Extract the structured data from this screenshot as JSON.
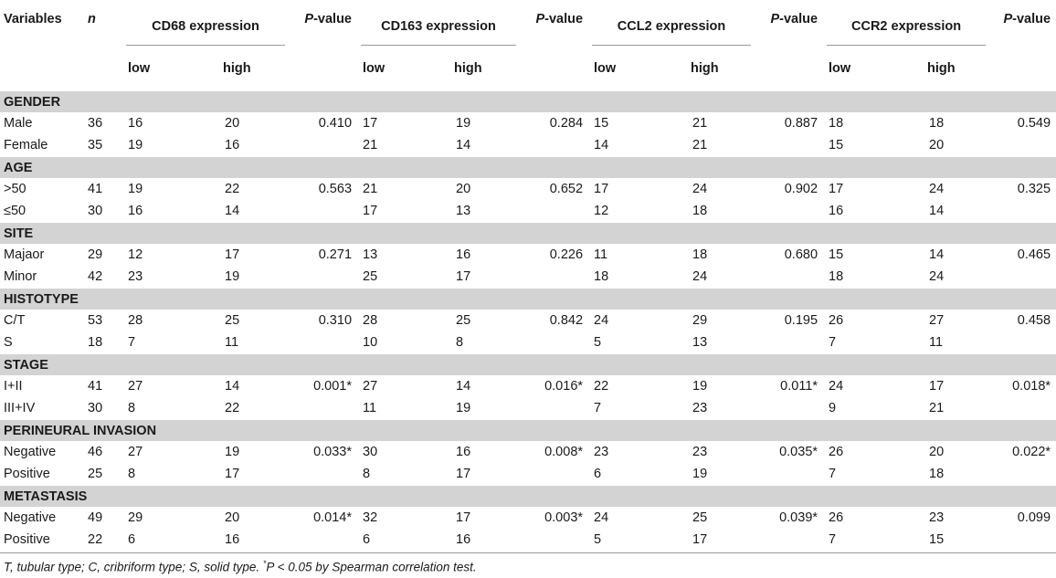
{
  "header": {
    "variables": "Variables",
    "n": "n",
    "groups": [
      "CD68 expression",
      "CD163 expression",
      "CCL2 expression",
      "CCR2 expression"
    ],
    "pvalue_italic": "P",
    "pvalue_rest": "-value",
    "low": "low",
    "high": "high"
  },
  "sections": [
    {
      "title": "GENDER",
      "rows": [
        {
          "label": "Male",
          "n": "36",
          "cd68_low": "16",
          "cd68_high": "20",
          "cd68_p": "0.410",
          "cd163_low": "17",
          "cd163_high": "19",
          "cd163_p": "0.284",
          "ccl2_low": "15",
          "ccl2_high": "21",
          "ccl2_p": "0.887",
          "ccr2_low": "18",
          "ccr2_high": "18",
          "ccr2_p": "0.549"
        },
        {
          "label": "Female",
          "n": "35",
          "cd68_low": "19",
          "cd68_high": "16",
          "cd68_p": "",
          "cd163_low": "21",
          "cd163_high": "14",
          "cd163_p": "",
          "ccl2_low": "14",
          "ccl2_high": "21",
          "ccl2_p": "",
          "ccr2_low": "15",
          "ccr2_high": "20",
          "ccr2_p": ""
        }
      ]
    },
    {
      "title": "AGE",
      "rows": [
        {
          "label": ">50",
          "n": "41",
          "cd68_low": "19",
          "cd68_high": "22",
          "cd68_p": "0.563",
          "cd163_low": "21",
          "cd163_high": "20",
          "cd163_p": "0.652",
          "ccl2_low": "17",
          "ccl2_high": "24",
          "ccl2_p": "0.902",
          "ccr2_low": "17",
          "ccr2_high": "24",
          "ccr2_p": "0.325"
        },
        {
          "label": "≤50",
          "n": "30",
          "cd68_low": "16",
          "cd68_high": "14",
          "cd68_p": "",
          "cd163_low": "17",
          "cd163_high": "13",
          "cd163_p": "",
          "ccl2_low": "12",
          "ccl2_high": "18",
          "ccl2_p": "",
          "ccr2_low": "16",
          "ccr2_high": "14",
          "ccr2_p": ""
        }
      ]
    },
    {
      "title": "SITE",
      "rows": [
        {
          "label": "Majaor",
          "n": "29",
          "cd68_low": "12",
          "cd68_high": "17",
          "cd68_p": "0.271",
          "cd163_low": "13",
          "cd163_high": "16",
          "cd163_p": "0.226",
          "ccl2_low": "11",
          "ccl2_high": "18",
          "ccl2_p": "0.680",
          "ccr2_low": "15",
          "ccr2_high": "14",
          "ccr2_p": "0.465"
        },
        {
          "label": "Minor",
          "n": "42",
          "cd68_low": "23",
          "cd68_high": "19",
          "cd68_p": "",
          "cd163_low": "25",
          "cd163_high": "17",
          "cd163_p": "",
          "ccl2_low": "18",
          "ccl2_high": "24",
          "ccl2_p": "",
          "ccr2_low": "18",
          "ccr2_high": "24",
          "ccr2_p": ""
        }
      ]
    },
    {
      "title": "HISTOTYPE",
      "rows": [
        {
          "label": "C/T",
          "n": "53",
          "cd68_low": "28",
          "cd68_high": "25",
          "cd68_p": "0.310",
          "cd163_low": "28",
          "cd163_high": "25",
          "cd163_p": "0.842",
          "ccl2_low": "24",
          "ccl2_high": "29",
          "ccl2_p": "0.195",
          "ccr2_low": "26",
          "ccr2_high": "27",
          "ccr2_p": "0.458"
        },
        {
          "label": "S",
          "n": "18",
          "cd68_low": "7",
          "cd68_high": "11",
          "cd68_p": "",
          "cd163_low": "10",
          "cd163_high": "8",
          "cd163_p": "",
          "ccl2_low": "5",
          "ccl2_high": "13",
          "ccl2_p": "",
          "ccr2_low": "7",
          "ccr2_high": "11",
          "ccr2_p": ""
        }
      ]
    },
    {
      "title": "STAGE",
      "rows": [
        {
          "label": "I+II",
          "n": "41",
          "cd68_low": "27",
          "cd68_high": "14",
          "cd68_p": "0.001*",
          "cd163_low": "27",
          "cd163_high": "14",
          "cd163_p": "0.016*",
          "ccl2_low": "22",
          "ccl2_high": "19",
          "ccl2_p": "0.011*",
          "ccr2_low": "24",
          "ccr2_high": "17",
          "ccr2_p": "0.018*"
        },
        {
          "label": "III+IV",
          "n": "30",
          "cd68_low": "8",
          "cd68_high": "22",
          "cd68_p": "",
          "cd163_low": "11",
          "cd163_high": "19",
          "cd163_p": "",
          "ccl2_low": "7",
          "ccl2_high": "23",
          "ccl2_p": "",
          "ccr2_low": "9",
          "ccr2_high": "21",
          "ccr2_p": ""
        }
      ]
    },
    {
      "title": "PERINEURAL INVASION",
      "rows": [
        {
          "label": "Negative",
          "n": "46",
          "cd68_low": "27",
          "cd68_high": "19",
          "cd68_p": "0.033*",
          "cd163_low": "30",
          "cd163_high": "16",
          "cd163_p": "0.008*",
          "ccl2_low": "23",
          "ccl2_high": "23",
          "ccl2_p": "0.035*",
          "ccr2_low": "26",
          "ccr2_high": "20",
          "ccr2_p": "0.022*"
        },
        {
          "label": "Positive",
          "n": "25",
          "cd68_low": "8",
          "cd68_high": "17",
          "cd68_p": "",
          "cd163_low": "8",
          "cd163_high": "17",
          "cd163_p": "",
          "ccl2_low": "6",
          "ccl2_high": "19",
          "ccl2_p": "",
          "ccr2_low": "7",
          "ccr2_high": "18",
          "ccr2_p": ""
        }
      ]
    },
    {
      "title": "METASTASIS",
      "rows": [
        {
          "label": "Negative",
          "n": "49",
          "cd68_low": "29",
          "cd68_high": "20",
          "cd68_p": "0.014*",
          "cd163_low": "32",
          "cd163_high": "17",
          "cd163_p": "0.003*",
          "ccl2_low": "24",
          "ccl2_high": "25",
          "ccl2_p": "0.039*",
          "ccr2_low": "26",
          "ccr2_high": "23",
          "ccr2_p": "0.099"
        },
        {
          "label": "Positive",
          "n": "22",
          "cd68_low": "6",
          "cd68_high": "16",
          "cd68_p": "",
          "cd163_low": "6",
          "cd163_high": "16",
          "cd163_p": "",
          "ccl2_low": "5",
          "ccl2_high": "17",
          "ccl2_p": "",
          "ccr2_low": "7",
          "ccr2_high": "15",
          "ccr2_p": ""
        }
      ]
    }
  ],
  "footnote": {
    "text_before": "T, tubular type; C, cribriform type; S, solid type. ",
    "star": "*",
    "text_after": "P < 0.05 by Spearman correlation test."
  }
}
